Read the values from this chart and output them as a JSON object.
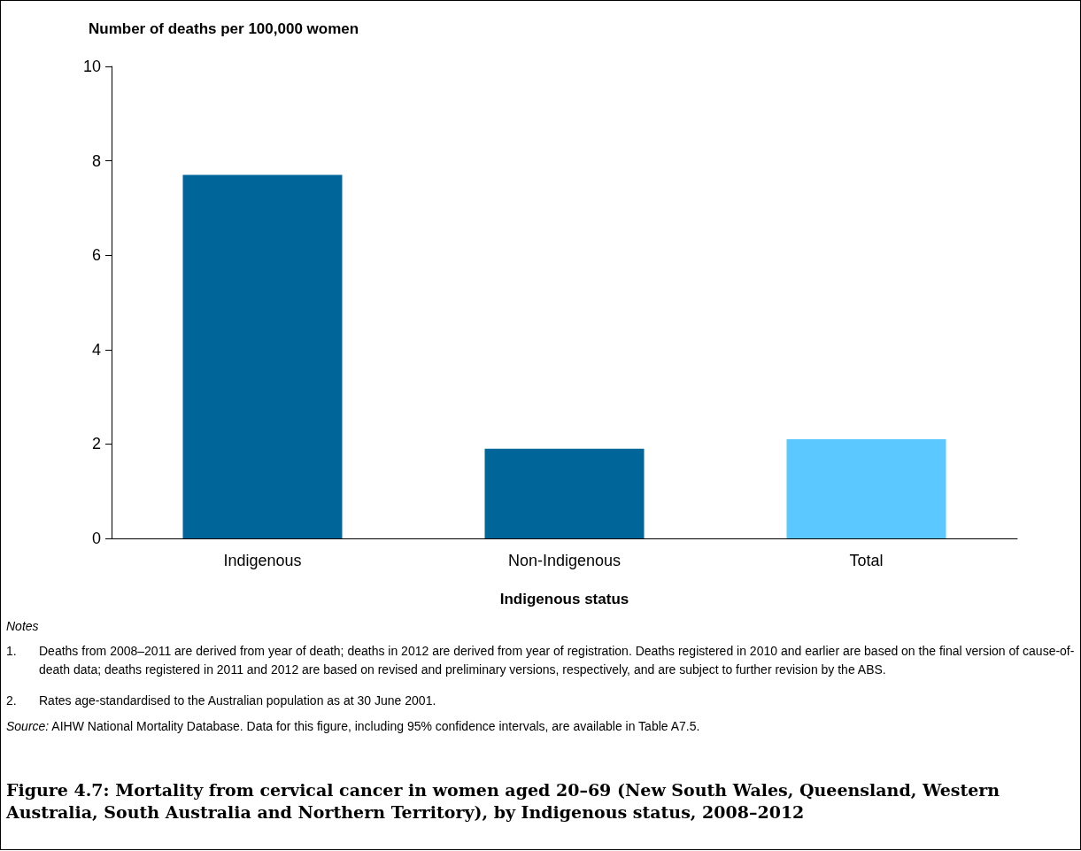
{
  "chart_data": {
    "type": "bar",
    "title": "Figure 4.7: Mortality from cervical cancer in women aged 20–69 (New South Wales, Queensland, Western Australia, South Australia and Northern Territory), by Indigenous status, 2008–2012",
    "ylabel": "Number of deaths per 100,000 women",
    "xlabel": "Indigenous status",
    "categories": [
      "Indigenous",
      "Non-Indigenous",
      "Total"
    ],
    "values": [
      7.7,
      1.9,
      2.1
    ],
    "colors": [
      "#006699",
      "#006699",
      "#5bc8ff"
    ],
    "ylim": [
      0,
      10
    ],
    "yticks": [
      0,
      2,
      4,
      6,
      8,
      10
    ],
    "grid": false,
    "annotations": [
      "Notes",
      "1. Deaths from 2008–2011 are derived from year of death; deaths in 2012 are derived from year of registration. Deaths registered in 2010 and earlier are based on the final version of cause-of-death data; deaths registered in 2011 and 2012 are based on revised and preliminary versions, respectively, and are subject to further revision by the ABS.",
      "2. Rates age-standardised to the Australian population as at 30 June 2001.",
      "Source: AIHW National Mortality Database. Data for this figure, including 95% confidence intervals, are available in Table A7.5."
    ]
  }
}
